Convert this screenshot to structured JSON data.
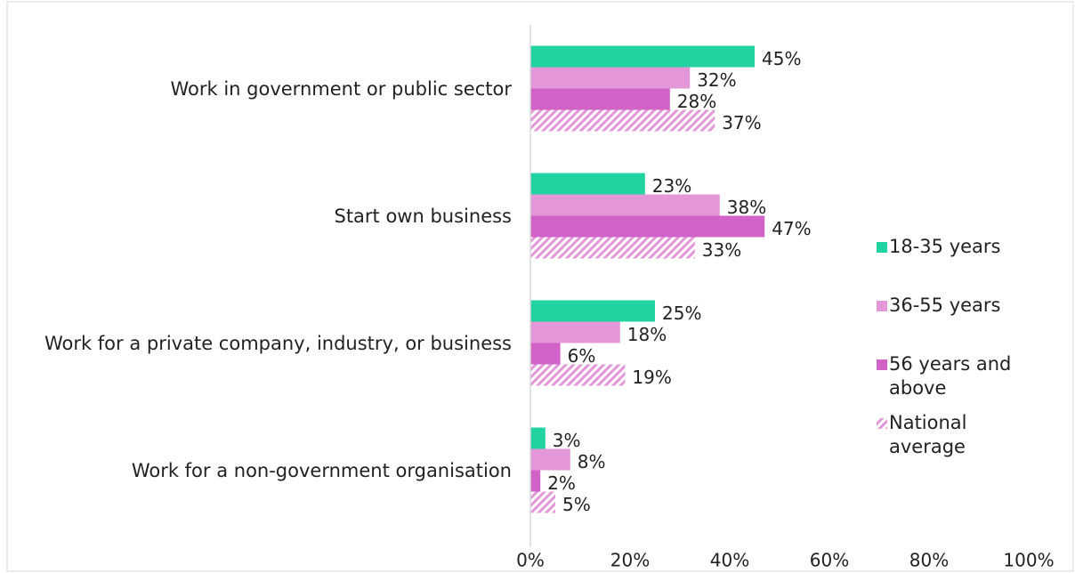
{
  "chart_data": {
    "type": "barh",
    "categories": [
      "Work in government or public sector",
      "Start own business",
      "Work for a private company, industry, or business",
      "Work for a non-government organisation"
    ],
    "series": [
      {
        "name": "18-35 years",
        "color": "#21d3a0",
        "values": [
          45,
          23,
          25,
          3
        ],
        "value_labels": [
          "45%",
          "23%",
          "25%",
          "3%"
        ]
      },
      {
        "name": "36-55 years",
        "color": "#e397d9",
        "values": [
          32,
          38,
          18,
          8
        ],
        "value_labels": [
          "32%",
          "38%",
          "18%",
          "8%"
        ]
      },
      {
        "name": "56 years and above",
        "color": "#d162c7",
        "values": [
          28,
          47,
          6,
          2
        ],
        "value_labels": [
          "28%",
          "47%",
          "6%",
          "2%"
        ]
      },
      {
        "name": "National average",
        "color": "#e397d9",
        "hatch": true,
        "values": [
          37,
          33,
          19,
          5
        ],
        "value_labels": [
          "37%",
          "33%",
          "19%",
          "5%"
        ]
      }
    ],
    "xlim": [
      0,
      100
    ],
    "xticks": [
      {
        "value": 0,
        "label": "0%"
      },
      {
        "value": 20,
        "label": "20%"
      },
      {
        "value": 40,
        "label": "40%"
      },
      {
        "value": 60,
        "label": "60%"
      },
      {
        "value": 80,
        "label": "80%"
      },
      {
        "value": 100,
        "label": "100%"
      }
    ],
    "grid": false,
    "legend": "right"
  }
}
